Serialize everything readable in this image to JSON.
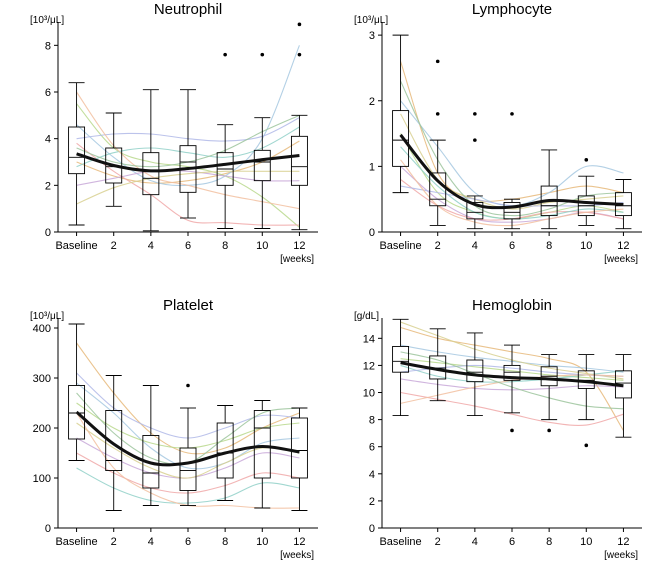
{
  "colors": {
    "axis": "#000000",
    "trend": "#111111",
    "individual": [
      "#e6b87a",
      "#a6c8e0",
      "#b8d88c",
      "#c8a8d8",
      "#f0a8a8",
      "#90d0c8",
      "#d8d090",
      "#b0b8e8",
      "#f2c0a0",
      "#9cc49c"
    ]
  },
  "chart_data": [
    {
      "type": "box",
      "title": "Neutrophil",
      "unit": "[10³/μL]",
      "xunit": "[weeks]",
      "categories": [
        "Baseline",
        "2",
        "4",
        "6",
        "8",
        "10",
        "12"
      ],
      "ylim": [
        0,
        9
      ],
      "yticks": [
        0,
        2,
        4,
        6,
        8
      ],
      "boxes": [
        {
          "min": 0.3,
          "q1": 2.5,
          "median": 3.2,
          "q3": 4.5,
          "max": 6.4,
          "outliers": []
        },
        {
          "min": 1.1,
          "q1": 2.1,
          "median": 2.8,
          "q3": 3.6,
          "max": 5.1,
          "outliers": []
        },
        {
          "min": 0.05,
          "q1": 1.6,
          "median": 2.3,
          "q3": 3.4,
          "max": 6.1,
          "outliers": []
        },
        {
          "min": 0.6,
          "q1": 1.7,
          "median": 3.0,
          "q3": 3.7,
          "max": 6.1,
          "outliers": []
        },
        {
          "min": 0.15,
          "q1": 2.0,
          "median": 2.7,
          "q3": 3.4,
          "max": 4.6,
          "outliers": [
            7.6
          ]
        },
        {
          "min": 0.15,
          "q1": 2.2,
          "median": 3.0,
          "q3": 3.5,
          "max": 4.9,
          "outliers": [
            7.6
          ]
        },
        {
          "min": 0.1,
          "q1": 2.0,
          "median": 2.8,
          "q3": 4.1,
          "max": 5.0,
          "outliers": [
            7.6,
            8.9
          ]
        }
      ],
      "trend": [
        3.35,
        2.85,
        2.62,
        2.72,
        2.9,
        3.1,
        3.28
      ],
      "individuals": [
        [
          3.0,
          2.4,
          2.1,
          2.2,
          2.5,
          3.0,
          3.9
        ],
        [
          4.6,
          3.2,
          2.2,
          2.0,
          2.4,
          4.0,
          8.0
        ],
        [
          5.5,
          3.6,
          3.0,
          2.8,
          2.4,
          1.5,
          0.2
        ],
        [
          2.0,
          2.3,
          2.6,
          2.6,
          2.4,
          2.2,
          2.2
        ],
        [
          3.8,
          2.6,
          1.6,
          0.5,
          0.4,
          0.3,
          0.3
        ],
        [
          2.8,
          3.4,
          3.6,
          3.4,
          3.2,
          3.6,
          4.5
        ],
        [
          1.2,
          1.9,
          2.3,
          2.5,
          2.6,
          2.6,
          2.6
        ],
        [
          4.0,
          4.2,
          4.2,
          4.0,
          3.9,
          4.1,
          4.9
        ],
        [
          6.0,
          3.7,
          2.4,
          2.0,
          1.6,
          1.3,
          1.0
        ],
        [
          3.6,
          3.0,
          2.8,
          3.0,
          3.5,
          4.3,
          5.0
        ]
      ]
    },
    {
      "type": "box",
      "title": "Lymphocyte",
      "unit": "[10³/μL]",
      "xunit": "[weeks]",
      "categories": [
        "Baseline",
        "2",
        "4",
        "6",
        "8",
        "10",
        "12"
      ],
      "ylim": [
        0,
        3.2
      ],
      "yticks": [
        0,
        1,
        2,
        3
      ],
      "boxes": [
        {
          "min": 0.6,
          "q1": 1.0,
          "median": 1.4,
          "q3": 1.85,
          "max": 3.0,
          "outliers": []
        },
        {
          "min": 0.1,
          "q1": 0.4,
          "median": 0.5,
          "q3": 0.9,
          "max": 1.4,
          "outliers": [
            1.8,
            2.6
          ]
        },
        {
          "min": 0.05,
          "q1": 0.2,
          "median": 0.3,
          "q3": 0.45,
          "max": 0.55,
          "outliers": [
            1.4,
            1.8
          ]
        },
        {
          "min": 0.05,
          "q1": 0.2,
          "median": 0.3,
          "q3": 0.45,
          "max": 0.5,
          "outliers": [
            1.8
          ]
        },
        {
          "min": 0.05,
          "q1": 0.25,
          "median": 0.4,
          "q3": 0.7,
          "max": 1.25,
          "outliers": []
        },
        {
          "min": 0.1,
          "q1": 0.25,
          "median": 0.4,
          "q3": 0.55,
          "max": 0.85,
          "outliers": [
            1.1
          ]
        },
        {
          "min": 0.05,
          "q1": 0.25,
          "median": 0.4,
          "q3": 0.6,
          "max": 0.8,
          "outliers": []
        }
      ],
      "trend": [
        1.48,
        0.78,
        0.42,
        0.38,
        0.48,
        0.45,
        0.42
      ],
      "individuals": [
        [
          2.6,
          0.9,
          0.5,
          0.5,
          0.6,
          0.7,
          0.6
        ],
        [
          2.0,
          1.3,
          0.6,
          0.4,
          0.6,
          1.0,
          0.9
        ],
        [
          1.5,
          0.6,
          0.3,
          0.2,
          0.3,
          0.4,
          0.3
        ],
        [
          1.0,
          0.5,
          0.2,
          0.15,
          0.2,
          0.3,
          0.2
        ],
        [
          0.8,
          0.4,
          0.2,
          0.2,
          0.3,
          0.3,
          0.2
        ],
        [
          1.3,
          0.7,
          0.3,
          0.2,
          0.25,
          0.35,
          0.3
        ],
        [
          1.8,
          0.8,
          0.5,
          0.35,
          0.45,
          0.5,
          0.55
        ],
        [
          0.7,
          0.6,
          0.5,
          0.4,
          0.4,
          0.4,
          0.45
        ],
        [
          1.1,
          0.4,
          0.15,
          0.1,
          0.2,
          0.3,
          0.35
        ],
        [
          2.3,
          1.1,
          0.4,
          0.25,
          0.35,
          0.55,
          0.6
        ]
      ]
    },
    {
      "type": "box",
      "title": "Platelet",
      "unit": "[10³/μL]",
      "xunit": "[weeks]",
      "categories": [
        "Baseline",
        "2",
        "4",
        "6",
        "8",
        "10",
        "12"
      ],
      "ylim": [
        0,
        420
      ],
      "yticks": [
        0,
        100,
        200,
        300,
        400
      ],
      "boxes": [
        {
          "min": 135,
          "q1": 178,
          "median": 230,
          "q3": 285,
          "max": 408,
          "outliers": []
        },
        {
          "min": 35,
          "q1": 115,
          "median": 135,
          "q3": 235,
          "max": 305,
          "outliers": []
        },
        {
          "min": 45,
          "q1": 80,
          "median": 110,
          "q3": 185,
          "max": 285,
          "outliers": []
        },
        {
          "min": 45,
          "q1": 75,
          "median": 115,
          "q3": 160,
          "max": 240,
          "outliers": [
            285
          ]
        },
        {
          "min": 55,
          "q1": 100,
          "median": 150,
          "q3": 210,
          "max": 245,
          "outliers": []
        },
        {
          "min": 40,
          "q1": 100,
          "median": 200,
          "q3": 235,
          "max": 255,
          "outliers": []
        },
        {
          "min": 35,
          "q1": 100,
          "median": 155,
          "q3": 220,
          "max": 240,
          "outliers": []
        }
      ],
      "trend": [
        232,
        168,
        130,
        130,
        150,
        163,
        152
      ],
      "individuals": [
        [
          370,
          270,
          190,
          150,
          160,
          200,
          230
        ],
        [
          290,
          230,
          160,
          120,
          130,
          170,
          180
        ],
        [
          250,
          200,
          170,
          160,
          175,
          200,
          210
        ],
        [
          180,
          140,
          110,
          100,
          120,
          150,
          140
        ],
        [
          150,
          110,
          80,
          70,
          85,
          110,
          100
        ],
        [
          120,
          80,
          55,
          50,
          60,
          90,
          80
        ],
        [
          210,
          160,
          120,
          100,
          130,
          160,
          150
        ],
        [
          310,
          240,
          200,
          180,
          200,
          225,
          220
        ],
        [
          230,
          120,
          70,
          45,
          45,
          40,
          40
        ],
        [
          270,
          190,
          140,
          130,
          180,
          230,
          240
        ]
      ]
    },
    {
      "type": "box",
      "title": "Hemoglobin",
      "unit": "[g/dL]",
      "xunit": "[weeks]",
      "categories": [
        "Baseline",
        "2",
        "4",
        "6",
        "8",
        "10",
        "12"
      ],
      "ylim": [
        0,
        15.5
      ],
      "yticks": [
        0,
        2,
        4,
        6,
        8,
        10,
        12,
        14
      ],
      "boxes": [
        {
          "min": 8.3,
          "q1": 11.5,
          "median": 12.3,
          "q3": 13.4,
          "max": 15.4,
          "outliers": []
        },
        {
          "min": 9.4,
          "q1": 11.0,
          "median": 11.8,
          "q3": 12.7,
          "max": 14.7,
          "outliers": []
        },
        {
          "min": 8.3,
          "q1": 10.8,
          "median": 11.5,
          "q3": 12.4,
          "max": 14.4,
          "outliers": []
        },
        {
          "min": 8.5,
          "q1": 10.9,
          "median": 11.5,
          "q3": 12.0,
          "max": 13.5,
          "outliers": [
            7.2
          ]
        },
        {
          "min": 8.0,
          "q1": 10.5,
          "median": 11.2,
          "q3": 11.9,
          "max": 12.8,
          "outliers": [
            7.2
          ]
        },
        {
          "min": 8.0,
          "q1": 10.3,
          "median": 10.9,
          "q3": 11.6,
          "max": 12.8,
          "outliers": [
            6.1
          ]
        },
        {
          "min": 6.7,
          "q1": 9.6,
          "median": 10.7,
          "q3": 11.6,
          "max": 12.8,
          "outliers": []
        }
      ],
      "trend": [
        12.2,
        11.7,
        11.3,
        11.1,
        11.0,
        10.8,
        10.5
      ],
      "individuals": [
        [
          14.8,
          14.0,
          13.5,
          13.0,
          12.5,
          11.5,
          7.2
        ],
        [
          13.5,
          13.0,
          12.6,
          12.3,
          12.0,
          11.8,
          11.5
        ],
        [
          12.5,
          12.2,
          11.9,
          11.6,
          11.3,
          11.1,
          10.9
        ],
        [
          11.0,
          10.6,
          10.3,
          10.2,
          10.3,
          10.5,
          10.4
        ],
        [
          10.0,
          9.5,
          9.0,
          8.4,
          7.8,
          7.6,
          8.4
        ],
        [
          12.0,
          11.2,
          10.8,
          10.8,
          11.0,
          11.3,
          11.6
        ],
        [
          15.2,
          14.2,
          13.2,
          12.4,
          11.8,
          11.4,
          11.0
        ],
        [
          11.5,
          11.8,
          12.0,
          11.8,
          11.5,
          11.3,
          11.2
        ],
        [
          9.2,
          9.8,
          10.4,
          10.9,
          11.2,
          11.3,
          11.2
        ],
        [
          13.0,
          12.4,
          11.4,
          10.4,
          9.6,
          9.0,
          8.8
        ]
      ]
    }
  ]
}
